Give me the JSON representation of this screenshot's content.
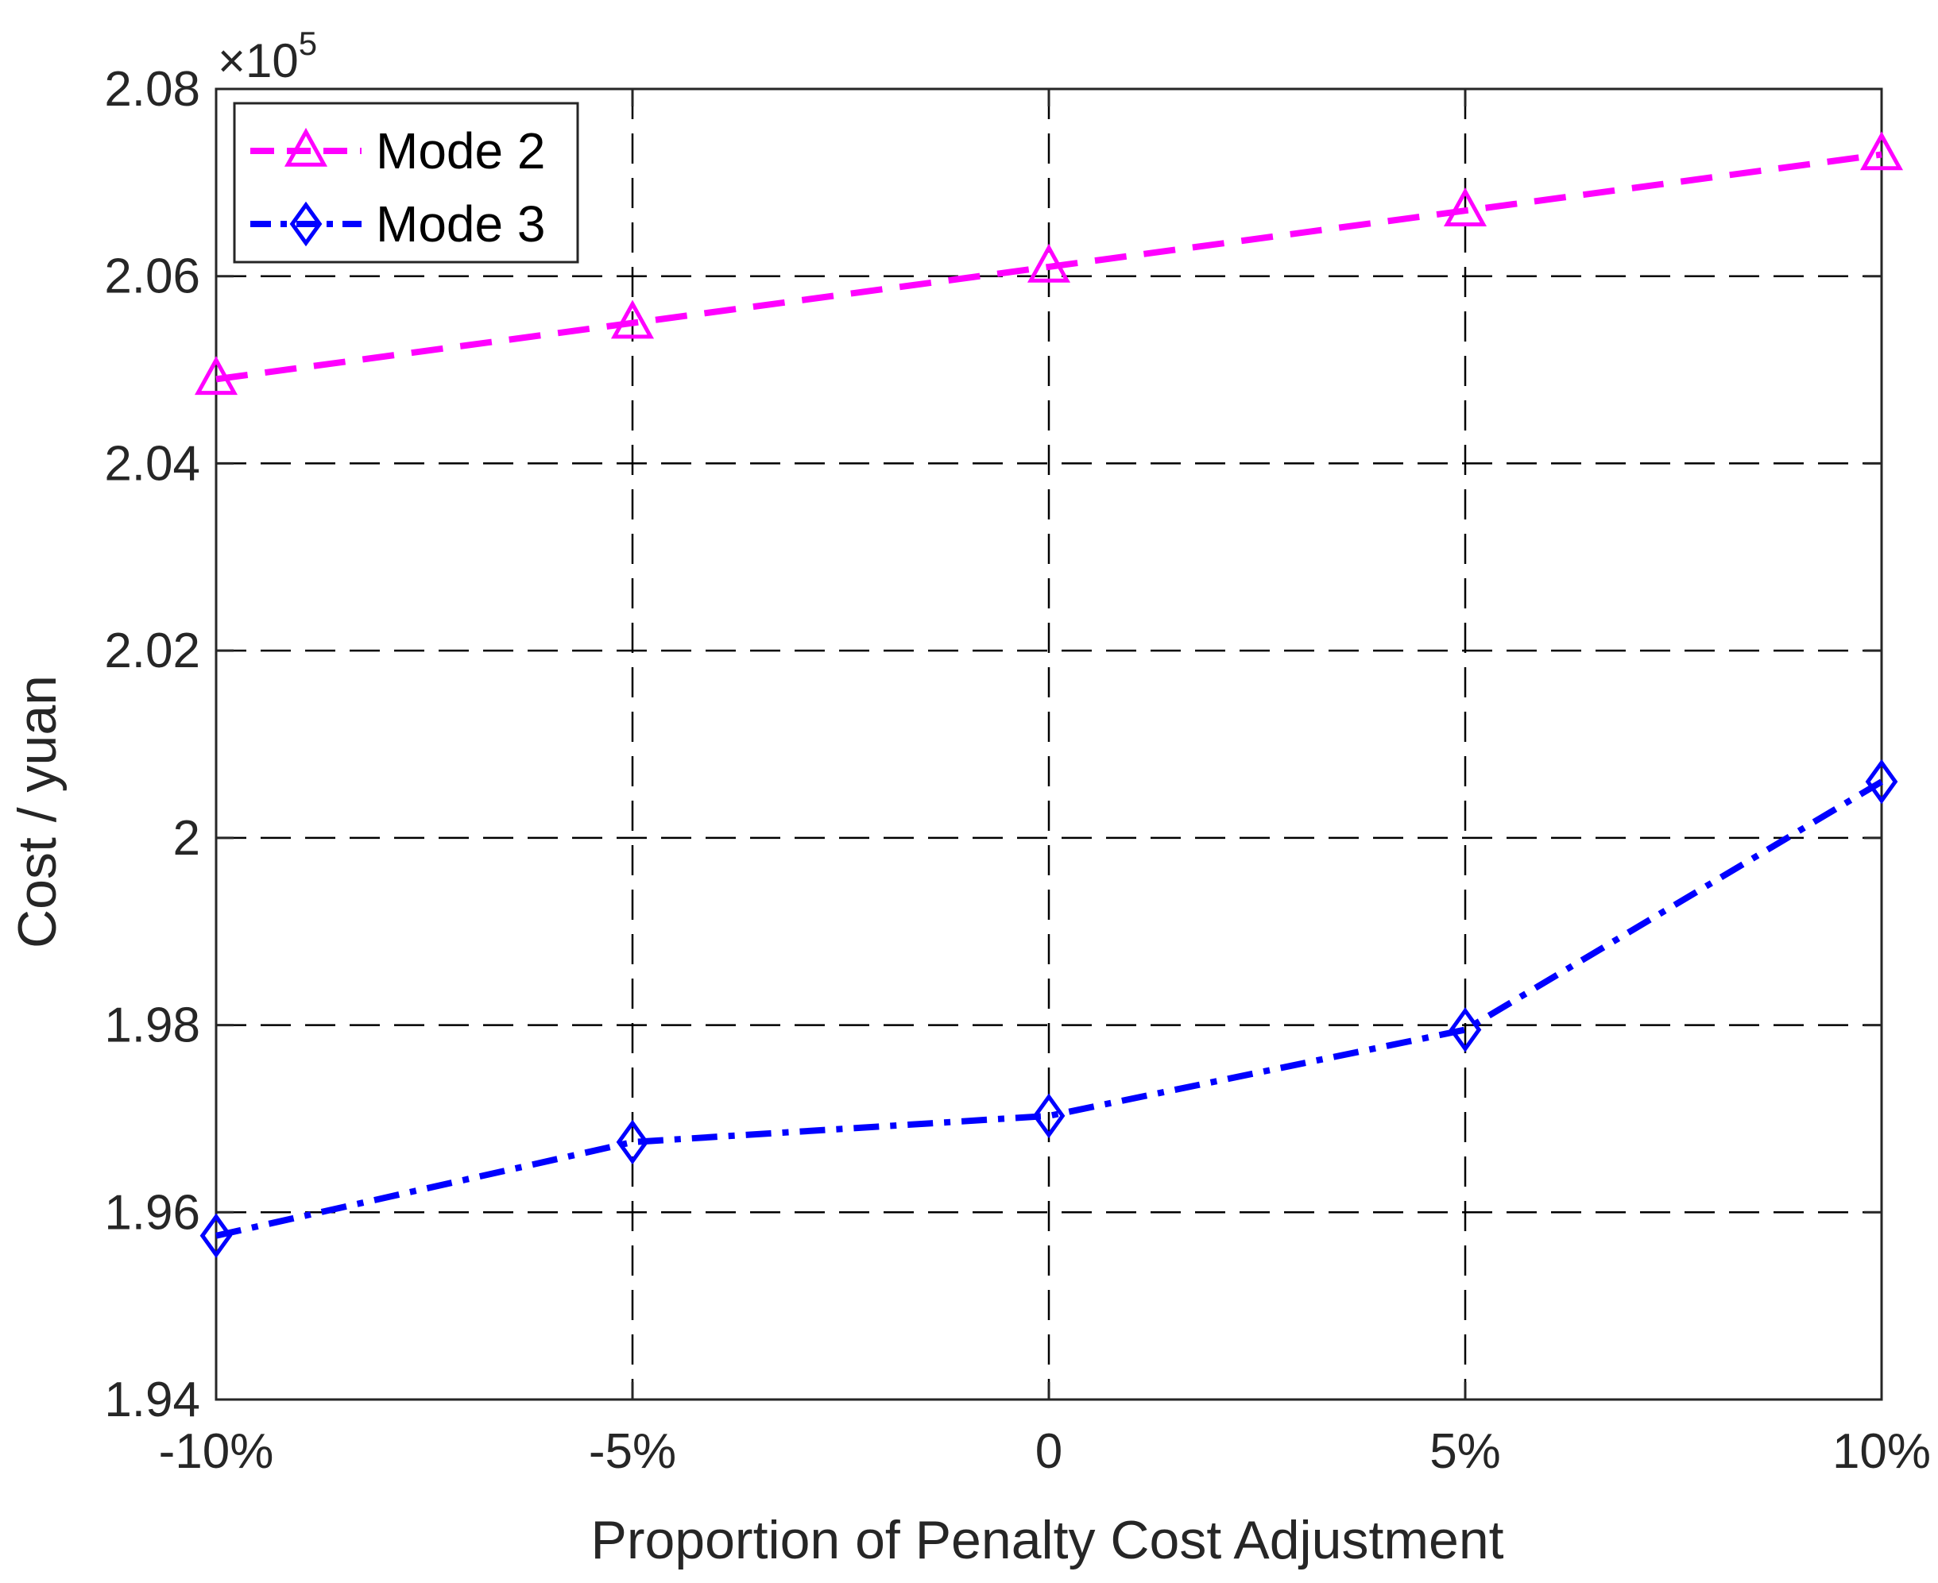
{
  "chart_data": {
    "type": "line",
    "title": "",
    "xlabel": "Proportion of Penalty Cost Adjustment",
    "ylabel": "Cost / yuan",
    "categories": [
      "-10%",
      "-5%",
      "0",
      "5%",
      "10%"
    ],
    "y_multiplier": {
      "prefix": "×10",
      "exponent": "5"
    },
    "ylim": [
      1.94,
      2.08
    ],
    "yticks": [
      1.94,
      1.96,
      1.98,
      2,
      2.02,
      2.04,
      2.06,
      2.08
    ],
    "ytick_labels": [
      "1.94",
      "1.96",
      "1.98",
      "2",
      "2.02",
      "2.04",
      "2.06",
      "2.08"
    ],
    "grid": true,
    "legend_position": "top-left",
    "series": [
      {
        "name": "Mode 2",
        "values": [
          2.049,
          2.055,
          2.061,
          2.067,
          2.073
        ],
        "color": "#ff00ff",
        "marker": "triangle",
        "line_style": "dashed"
      },
      {
        "name": "Mode 3",
        "values": [
          1.9575,
          1.9675,
          1.9703,
          1.9795,
          2.006
        ],
        "color": "#0000ff",
        "marker": "diamond",
        "line_style": "dash-dot"
      }
    ]
  }
}
